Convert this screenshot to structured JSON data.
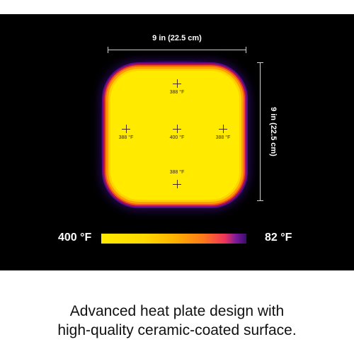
{
  "dimensions": {
    "width_label": "9 in (22.5 cm)",
    "height_label": "9 in (22.5 cm)"
  },
  "probes": {
    "top": "388 °F",
    "left": "388 °F",
    "center": "400 °F",
    "right": "388 °F",
    "bottom": "388 °F"
  },
  "scale": {
    "min_label": "400 °F",
    "max_label": "82 °F",
    "colors": [
      "#ffea00",
      "#ffb300",
      "#ff7a1a",
      "#f0355a",
      "#3a0c6e"
    ]
  },
  "caption": {
    "line1": "Advanced heat plate design with",
    "line2": "high-quality ceramic-coated surface."
  }
}
